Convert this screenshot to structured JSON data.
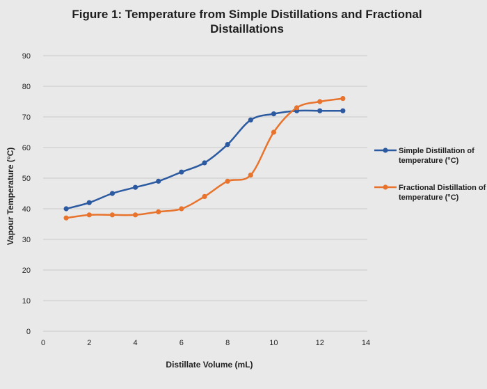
{
  "chart_data": {
    "type": "line",
    "title_line1": "Figure 1: Temperature from Simple Distillations and Fractional",
    "title_line2": "Distaillations",
    "xlabel": "Distillate Volume (mL)",
    "ylabel": "Vapour Temperature (°C)",
    "xlim": [
      0,
      14
    ],
    "ylim": [
      0,
      90
    ],
    "x_ticks": [
      0,
      2,
      4,
      6,
      8,
      10,
      12,
      14
    ],
    "y_ticks": [
      0,
      10,
      20,
      30,
      40,
      50,
      60,
      70,
      80,
      90
    ],
    "grid": "horizontal",
    "legend_position": "right",
    "series": [
      {
        "name_line1": "Simple Distillation of",
        "name_line2": "temperature (°C)",
        "color": "#2c5aa0",
        "x": [
          1,
          2,
          3,
          4,
          5,
          6,
          7,
          8,
          9,
          10,
          11,
          12,
          13
        ],
        "y": [
          40,
          42,
          45,
          47,
          49,
          52,
          55,
          61,
          69,
          71,
          72,
          72,
          72
        ]
      },
      {
        "name_line1": "Fractional Distillation of",
        "name_line2": "temperature (°C)",
        "color": "#e8732c",
        "x": [
          1,
          2,
          3,
          4,
          5,
          6,
          7,
          8,
          9,
          10,
          11,
          12,
          13
        ],
        "y": [
          37,
          38,
          38,
          38,
          39,
          40,
          44,
          49,
          51,
          65,
          73,
          75,
          76
        ]
      }
    ]
  }
}
